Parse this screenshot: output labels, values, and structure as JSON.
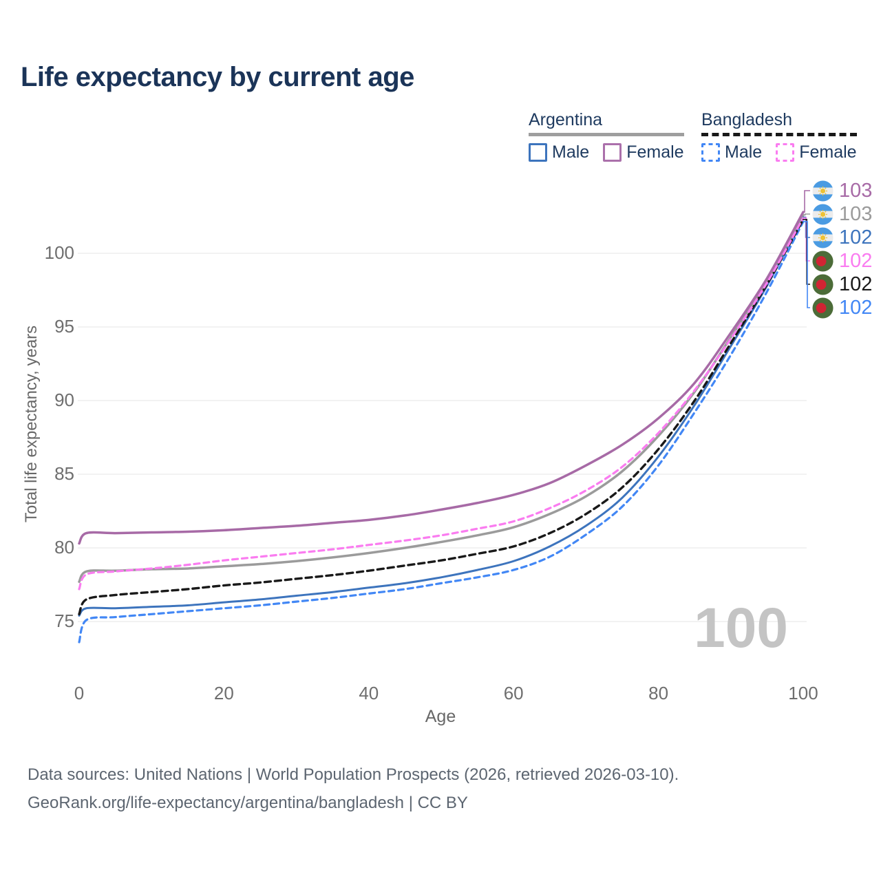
{
  "title": "Life expectancy by current age",
  "legend": {
    "groups": [
      {
        "label": "Argentina",
        "underline": "solid",
        "underline_color": "#9e9e9e",
        "items": [
          {
            "label": "Male",
            "color": "#3d74bd",
            "dash": false
          },
          {
            "label": "Female",
            "color": "#ab70ab",
            "dash": false
          }
        ]
      },
      {
        "label": "Bangladesh",
        "underline": "dashed",
        "underline_color": "#191919",
        "items": [
          {
            "label": "Male",
            "color": "#4287f5",
            "dash": true
          },
          {
            "label": "Female",
            "color": "#fa7cf0",
            "dash": true
          }
        ]
      }
    ]
  },
  "y_axis": {
    "label": "Total life expectancy, years",
    "ticks": [
      75,
      80,
      85,
      90,
      95,
      100
    ]
  },
  "x_axis": {
    "label": "Age",
    "ticks": [
      0,
      20,
      40,
      60,
      80,
      100
    ]
  },
  "end_labels": [
    {
      "flag": "argentina-flag-icon",
      "value": "103",
      "color": "#a76aa6",
      "series": "Argentina Female"
    },
    {
      "flag": "argentina-flag-icon",
      "value": "103",
      "color": "#9b9b9b",
      "series": "Argentina"
    },
    {
      "flag": "argentina-flag-icon",
      "value": "102",
      "color": "#3d74bd",
      "series": "Argentina Male"
    },
    {
      "flag": "bangladesh-flag-icon",
      "value": "102",
      "color": "#fa7cf0",
      "series": "Bangladesh Female"
    },
    {
      "flag": "bangladesh-flag-icon",
      "value": "102",
      "color": "#191919",
      "series": "Bangladesh"
    },
    {
      "flag": "bangladesh-flag-icon",
      "value": "102",
      "color": "#4287f5",
      "series": "Bangladesh Male"
    }
  ],
  "age_indicator": "100",
  "footer": {
    "line1": "Data sources: United Nations | World Population Prospects (2026, retrieved 2026-03-10).",
    "line2": "GeoRank.org/life-expectancy/argentina/bangladesh | CC BY"
  },
  "colors": {
    "title": "#1b3458",
    "grid": "#e9e9e9",
    "tick_text": "#6e6e6e",
    "watermark": "#c4c4c4",
    "footer": "#5c6570",
    "argentina_flag_blue": "#4a9be2",
    "argentina_flag_white": "#ececec",
    "argentina_flag_sun": "#eec235",
    "bangladesh_flag_green": "#4c6c38",
    "bangladesh_flag_red": "#d12433"
  },
  "chart_data": {
    "type": "line",
    "title": "Life expectancy by current age",
    "xlabel": "Age",
    "ylabel": "Total life expectancy, years",
    "xlim": [
      0,
      100
    ],
    "ylim": [
      73,
      103.5
    ],
    "grid": "horizontal",
    "legend_position": "top-right",
    "x": [
      0,
      1,
      5,
      10,
      15,
      20,
      25,
      30,
      35,
      40,
      45,
      50,
      55,
      60,
      65,
      70,
      75,
      80,
      85,
      90,
      95,
      100
    ],
    "series": [
      {
        "name": "Argentina Female",
        "color": "#a76aa6",
        "dash": null,
        "width": 3.5,
        "values": [
          80.3,
          81.0,
          81.0,
          81.05,
          81.1,
          81.2,
          81.35,
          81.5,
          81.7,
          81.9,
          82.2,
          82.6,
          83.05,
          83.6,
          84.4,
          85.6,
          87.0,
          88.8,
          91.2,
          94.6,
          98.3,
          102.8
        ]
      },
      {
        "name": "Argentina",
        "color": "#9b9b9b",
        "dash": null,
        "width": 3.5,
        "values": [
          77.7,
          78.4,
          78.45,
          78.55,
          78.6,
          78.75,
          78.9,
          79.1,
          79.35,
          79.65,
          80.0,
          80.4,
          80.85,
          81.4,
          82.3,
          83.5,
          85.2,
          87.6,
          90.6,
          94.3,
          98.2,
          102.6
        ]
      },
      {
        "name": "Argentina Male",
        "color": "#3d74bd",
        "dash": null,
        "width": 3,
        "values": [
          75.4,
          75.9,
          75.9,
          76.0,
          76.1,
          76.3,
          76.5,
          76.75,
          77.0,
          77.3,
          77.6,
          78.0,
          78.5,
          79.1,
          80.1,
          81.5,
          83.4,
          86.2,
          89.7,
          93.7,
          97.8,
          102.45
        ]
      },
      {
        "name": "Bangladesh Female",
        "color": "#fa7cf0",
        "dash": "8 6",
        "width": 3.2,
        "values": [
          77.2,
          78.2,
          78.4,
          78.6,
          78.85,
          79.15,
          79.4,
          79.65,
          79.9,
          80.2,
          80.5,
          80.85,
          81.3,
          81.8,
          82.7,
          83.9,
          85.5,
          87.8,
          90.7,
          94.2,
          98.0,
          102.4
        ]
      },
      {
        "name": "Bangladesh",
        "color": "#191919",
        "dash": "9 6",
        "width": 3.4,
        "values": [
          75.5,
          76.5,
          76.8,
          77.0,
          77.2,
          77.45,
          77.65,
          77.9,
          78.15,
          78.45,
          78.8,
          79.15,
          79.6,
          80.1,
          81.0,
          82.3,
          84.1,
          86.7,
          90.0,
          93.9,
          97.9,
          102.3
        ]
      },
      {
        "name": "Bangladesh Male",
        "color": "#4287f5",
        "dash": "8 6",
        "width": 3.2,
        "values": [
          73.6,
          75.1,
          75.3,
          75.5,
          75.7,
          75.9,
          76.1,
          76.35,
          76.6,
          76.9,
          77.2,
          77.6,
          78.0,
          78.5,
          79.4,
          80.9,
          82.8,
          85.6,
          89.2,
          93.1,
          97.4,
          102.15
        ]
      }
    ]
  }
}
